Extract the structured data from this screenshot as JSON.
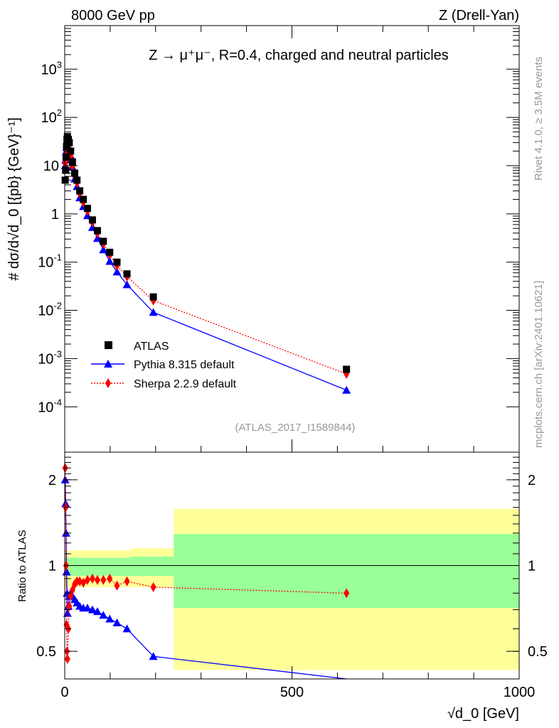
{
  "header": {
    "left": "8000 GeV pp",
    "right": "Z (Drell-Yan)"
  },
  "side": {
    "top": "Rivet 4.1.0, ≥ 3.5M events",
    "bottom": "mcplots.cern.ch [arXiv:2401.10621]"
  },
  "chart_data": {
    "type": "scatter",
    "title": "Z → μ⁺μ⁻, R=0.4, charged and neutral particles",
    "analysis": "(ATLAS_2017_I1589844)",
    "xlabel": "√d_0 [GeV]",
    "ylabel": "# dσ/d√d_0 [{pb} {GeV}⁻¹]",
    "ratio_ylabel": "Ratio to ATLAS",
    "xlim": [
      0,
      1000
    ],
    "ylim": [
      1.15e-05,
      8000
    ],
    "yscale": "log",
    "ratio_ylim": [
      0.4,
      2.5
    ],
    "xticks": [
      "0",
      "500",
      "1000"
    ],
    "yticks": [
      {
        "v": 0.0001,
        "b": "10",
        "e": "-4"
      },
      {
        "v": 0.001,
        "b": "10",
        "e": "-3"
      },
      {
        "v": 0.01,
        "b": "10",
        "e": "-2"
      },
      {
        "v": 0.1,
        "b": "10",
        "e": "-1"
      },
      {
        "v": 1,
        "b": "1",
        "e": ""
      },
      {
        "v": 10,
        "b": "10",
        "e": ""
      },
      {
        "v": 100,
        "b": "10",
        "e": "2"
      },
      {
        "v": 1000,
        "b": "10",
        "e": "3"
      }
    ],
    "ratio_yticks": [
      {
        "v": 0.5,
        "l": "0.5"
      },
      {
        "v": 1,
        "l": "1"
      },
      {
        "v": 2,
        "l": "2"
      }
    ],
    "legend": {
      "placement": "lower-left",
      "entries": [
        "ATLAS",
        "Pythia 8.315 default",
        "Sherpa 2.2.9 default"
      ]
    },
    "x": [
      1,
      2,
      3,
      4,
      5,
      6,
      8,
      10,
      13,
      17,
      22,
      27,
      33,
      41,
      50,
      61,
      72,
      85,
      99,
      115,
      137,
      195,
      620
    ],
    "series": [
      {
        "name": "ATLAS",
        "color": "#000000",
        "values": [
          5,
          8,
          15,
          25,
          35,
          40,
          35,
          30,
          20,
          12,
          7,
          5,
          3,
          2,
          1.3,
          0.75,
          0.45,
          0.27,
          0.16,
          0.1,
          0.057,
          0.019,
          0.0006
        ]
      },
      {
        "name": "Pythia 8.315 default",
        "color": "#0000ff",
        "ratio": [
          2.0,
          1.65,
          1.3,
          0.95,
          0.8,
          0.68,
          0.72,
          0.78,
          0.8,
          0.78,
          0.76,
          0.74,
          0.72,
          0.71,
          0.71,
          0.7,
          0.69,
          0.67,
          0.65,
          0.63,
          0.6,
          0.48,
          0.37
        ]
      },
      {
        "name": "Sherpa 2.2.9 default",
        "color": "#ff0000",
        "ratio": [
          2.2,
          1.6,
          1.0,
          0.62,
          0.5,
          0.47,
          0.6,
          0.72,
          0.78,
          0.82,
          0.86,
          0.88,
          0.88,
          0.87,
          0.89,
          0.9,
          0.89,
          0.89,
          0.9,
          0.85,
          0.88,
          0.84,
          0.8
        ]
      }
    ],
    "bands": [
      {
        "x0": 0,
        "x1": 146,
        "yellow": [
          0.84,
          1.13
        ],
        "green": [
          0.92,
          1.065
        ]
      },
      {
        "x0": 146,
        "x1": 240,
        "yellow": [
          0.84,
          1.15
        ],
        "green": [
          0.92,
          1.075
        ]
      },
      {
        "x0": 240,
        "x1": 1000,
        "yellow": [
          0.43,
          1.58
        ],
        "green": [
          0.71,
          1.29
        ]
      }
    ]
  }
}
